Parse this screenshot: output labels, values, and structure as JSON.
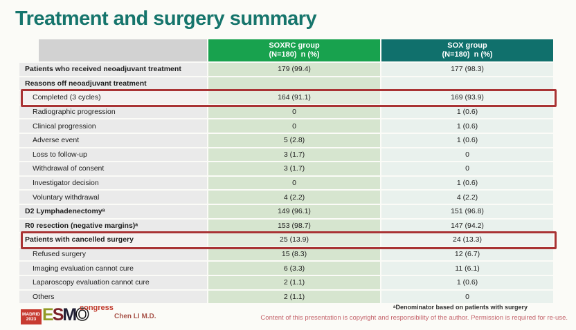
{
  "slide": {
    "title": "Treatment and surgery summary",
    "presenter": "Chen LI M.D.",
    "footnote": "ᵃDenominator based on patients with surgery",
    "copyright": "Content of this presentation is copyright and responsibility of the author. Permission is required for re-use."
  },
  "logo": {
    "badge_line1": "MADRID",
    "badge_line2": "2023",
    "letters": [
      "E",
      "S",
      "M",
      "O"
    ],
    "congress": "congress"
  },
  "colors": {
    "title_color": "#16756c",
    "soxrc_header": "#18a24e",
    "sox_header": "#10706c",
    "highlight_box": "#a93334",
    "presenter_color": "#a8544a",
    "copyright_color": "#c4636b"
  },
  "table": {
    "columns": [
      {
        "line1": "SOXRC group",
        "line2": "(N=180)  n (%)"
      },
      {
        "line1": "SOX group",
        "line2": "(N=180)  n (%)"
      }
    ],
    "rows": [
      {
        "label": "Patients who received neoadjuvant treatment",
        "bold": true,
        "indent": false,
        "highlight": false,
        "soxrc": "179 (99.4)",
        "sox": "177 (98.3)"
      },
      {
        "label": "Reasons off neoadjuvant treatment",
        "bold": true,
        "indent": false,
        "highlight": false,
        "soxrc": "",
        "sox": ""
      },
      {
        "label": "Completed (3 cycles)",
        "bold": false,
        "indent": true,
        "highlight": true,
        "soxrc": "164 (91.1)",
        "sox": "169 (93.9)"
      },
      {
        "label": "Radiographic progression",
        "bold": false,
        "indent": true,
        "highlight": false,
        "soxrc": "0",
        "sox": "1 (0.6)"
      },
      {
        "label": "Clinical progression",
        "bold": false,
        "indent": true,
        "highlight": false,
        "soxrc": "0",
        "sox": "1 (0.6)"
      },
      {
        "label": "Adverse event",
        "bold": false,
        "indent": true,
        "highlight": false,
        "soxrc": "5 (2.8)",
        "sox": "1 (0.6)"
      },
      {
        "label": "Loss to follow-up",
        "bold": false,
        "indent": true,
        "highlight": false,
        "soxrc": "3 (1.7)",
        "sox": "0"
      },
      {
        "label": "Withdrawal of consent",
        "bold": false,
        "indent": true,
        "highlight": false,
        "soxrc": "3 (1.7)",
        "sox": "0"
      },
      {
        "label": "Investigator decision",
        "bold": false,
        "indent": true,
        "highlight": false,
        "soxrc": "0",
        "sox": "1 (0.6)"
      },
      {
        "label": "Voluntary withdrawal",
        "bold": false,
        "indent": true,
        "highlight": false,
        "soxrc": "4 (2.2)",
        "sox": "4 (2.2)"
      },
      {
        "label": "D2 Lymphadenectomyᵃ",
        "bold": true,
        "indent": false,
        "highlight": false,
        "soxrc": "149 (96.1)",
        "sox": "151 (96.8)"
      },
      {
        "label": "R0 resection (negative margins)ᵃ",
        "bold": true,
        "indent": false,
        "highlight": false,
        "soxrc": "153 (98.7)",
        "sox": "147 (94.2)"
      },
      {
        "label": "Patients with cancelled surgery",
        "bold": true,
        "indent": false,
        "highlight": true,
        "soxrc": "25 (13.9)",
        "sox": "24 (13.3)"
      },
      {
        "label": "Refused surgery",
        "bold": false,
        "indent": true,
        "highlight": false,
        "soxrc": "15 (8.3)",
        "sox": "12 (6.7)"
      },
      {
        "label": "Imaging evaluation cannot cure",
        "bold": false,
        "indent": true,
        "highlight": false,
        "soxrc": "6 (3.3)",
        "sox": "11 (6.1)"
      },
      {
        "label": "Laparoscopy evaluation cannot cure",
        "bold": false,
        "indent": true,
        "highlight": false,
        "soxrc": "2 (1.1)",
        "sox": "1 (0.6)"
      },
      {
        "label": "Others",
        "bold": false,
        "indent": true,
        "highlight": false,
        "soxrc": "2 (1.1)",
        "sox": "0"
      }
    ]
  }
}
